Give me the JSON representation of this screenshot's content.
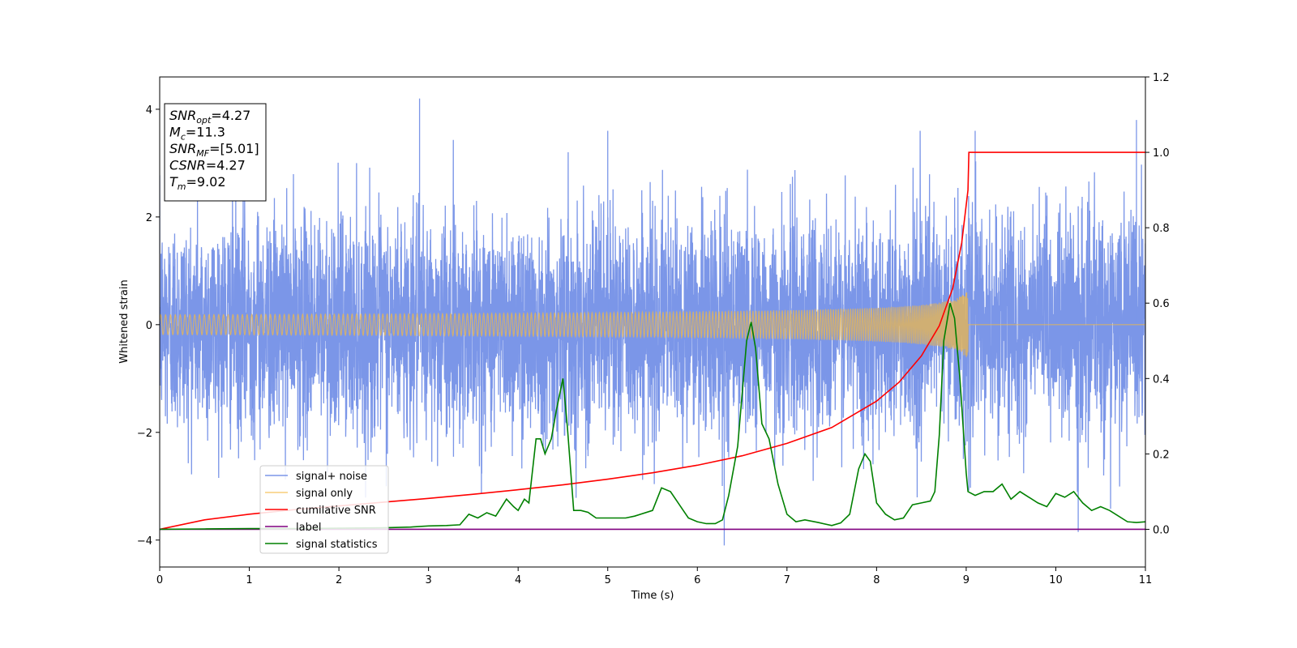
{
  "chart_data": {
    "type": "line",
    "xlabel": "Time (s)",
    "ylabel": "Whitened strain",
    "xlim": [
      0,
      11
    ],
    "ylim": [
      -4.5,
      4.6
    ],
    "y2lim": [
      -0.1,
      1.2
    ],
    "x_ticks": [
      0,
      1,
      2,
      3,
      4,
      5,
      6,
      7,
      8,
      9,
      10,
      11
    ],
    "y_ticks": [
      -4,
      -2,
      0,
      2,
      4
    ],
    "y_tick_labels": [
      "−4",
      "−2",
      "0",
      "2",
      "4"
    ],
    "y2_ticks": [
      0.0,
      0.2,
      0.4,
      0.6,
      0.8,
      1.0,
      1.2
    ],
    "y2_tick_labels": [
      "0.0",
      "0.2",
      "0.4",
      "0.6",
      "0.8",
      "1.0",
      "1.2"
    ],
    "grid": false,
    "legend_position": "lower-left",
    "info_box": {
      "lines": [
        {
          "symbol": "SNR",
          "sub": "opt",
          "value": "=4.27"
        },
        {
          "symbol": "M",
          "sub": "c",
          "value": "=11.3"
        },
        {
          "symbol": "SNR",
          "sub": "MF",
          "value": "=[5.01]"
        },
        {
          "symbol": "CSNR",
          "sub": "",
          "value": "=4.27"
        },
        {
          "symbol": "T",
          "sub": "m",
          "value": "=9.02"
        }
      ]
    },
    "series": [
      {
        "name": "signal+ noise",
        "axis": "left",
        "color": "#7b96e8",
        "style": "noise",
        "noise_sigma": 1.0,
        "envelope_points": [
          [
            0,
            4.1
          ],
          [
            2.9,
            4.2
          ],
          [
            5,
            3.6
          ],
          [
            9.1,
            3.6
          ],
          [
            10.9,
            3.8
          ],
          [
            11,
            3.6
          ]
        ],
        "min_points": [
          [
            0,
            -2.7
          ],
          [
            6.3,
            -4.1
          ],
          [
            10.25,
            -3.85
          ],
          [
            11,
            -3.0
          ]
        ]
      },
      {
        "name": "signal only",
        "axis": "left",
        "color": "#f5b942",
        "style": "chirp",
        "chirp_end": 9.02,
        "chirp_peak_amplitude": 0.75
      },
      {
        "name": "cumilative SNR",
        "axis": "right",
        "color": "#ff0000",
        "x": [
          0,
          0.5,
          1,
          1.5,
          2,
          2.5,
          3,
          3.5,
          4,
          4.5,
          5,
          5.5,
          6,
          6.5,
          7,
          7.5,
          8,
          8.25,
          8.5,
          8.7,
          8.85,
          8.95,
          9.02,
          9.03,
          11
        ],
        "y": [
          0.0,
          0.025,
          0.04,
          0.052,
          0.062,
          0.072,
          0.082,
          0.093,
          0.105,
          0.118,
          0.133,
          0.15,
          0.17,
          0.195,
          0.228,
          0.27,
          0.34,
          0.39,
          0.46,
          0.54,
          0.64,
          0.76,
          0.9,
          1.0,
          1.0
        ]
      },
      {
        "name": "label",
        "axis": "right",
        "color": "#800080",
        "x": [
          0,
          11
        ],
        "y": [
          0,
          0
        ]
      },
      {
        "name": "signal statistics",
        "axis": "right",
        "color": "#008000",
        "x": [
          0,
          0.5,
          1,
          1.5,
          2,
          2.5,
          2.8,
          3,
          3.2,
          3.35,
          3.45,
          3.55,
          3.65,
          3.75,
          3.87,
          3.95,
          4.0,
          4.07,
          4.12,
          4.2,
          4.25,
          4.3,
          4.37,
          4.43,
          4.5,
          4.55,
          4.62,
          4.7,
          4.78,
          4.87,
          5,
          5.2,
          5.3,
          5.5,
          5.6,
          5.7,
          5.8,
          5.9,
          6.0,
          6.1,
          6.2,
          6.28,
          6.35,
          6.45,
          6.55,
          6.6,
          6.65,
          6.72,
          6.8,
          6.9,
          7.0,
          7.1,
          7.2,
          7.35,
          7.5,
          7.6,
          7.7,
          7.8,
          7.87,
          7.93,
          8.0,
          8.1,
          8.2,
          8.3,
          8.4,
          8.5,
          8.6,
          8.65,
          8.7,
          8.75,
          8.82,
          8.87,
          8.93,
          9.0,
          9.02,
          9.1,
          9.2,
          9.3,
          9.4,
          9.5,
          9.6,
          9.7,
          9.8,
          9.9,
          10.0,
          10.1,
          10.2,
          10.3,
          10.4,
          10.5,
          10.6,
          10.8,
          10.9,
          11.0
        ],
        "y": [
          0.0,
          0.001,
          0.002,
          0.002,
          0.003,
          0.004,
          0.006,
          0.009,
          0.01,
          0.012,
          0.04,
          0.03,
          0.044,
          0.035,
          0.08,
          0.06,
          0.05,
          0.08,
          0.07,
          0.24,
          0.24,
          0.2,
          0.24,
          0.32,
          0.4,
          0.27,
          0.05,
          0.05,
          0.045,
          0.03,
          0.03,
          0.03,
          0.035,
          0.05,
          0.11,
          0.1,
          0.065,
          0.03,
          0.02,
          0.015,
          0.015,
          0.025,
          0.09,
          0.22,
          0.5,
          0.55,
          0.48,
          0.28,
          0.24,
          0.12,
          0.04,
          0.02,
          0.025,
          0.018,
          0.01,
          0.017,
          0.04,
          0.16,
          0.2,
          0.18,
          0.07,
          0.04,
          0.025,
          0.03,
          0.065,
          0.07,
          0.075,
          0.1,
          0.25,
          0.5,
          0.6,
          0.56,
          0.4,
          0.15,
          0.1,
          0.09,
          0.1,
          0.1,
          0.12,
          0.08,
          0.1,
          0.085,
          0.07,
          0.06,
          0.095,
          0.085,
          0.1,
          0.07,
          0.05,
          0.06,
          0.05,
          0.02,
          0.018,
          0.02
        ]
      }
    ]
  }
}
